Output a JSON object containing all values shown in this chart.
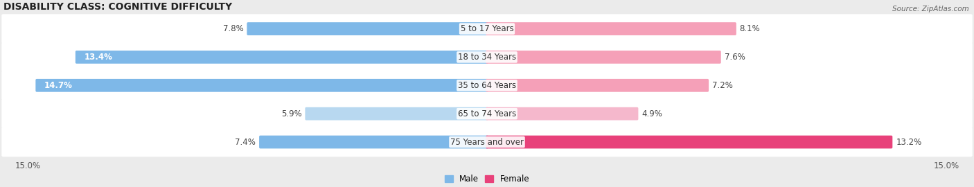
{
  "title": "DISABILITY CLASS: COGNITIVE DIFFICULTY",
  "source": "Source: ZipAtlas.com",
  "categories": [
    "5 to 17 Years",
    "18 to 34 Years",
    "35 to 64 Years",
    "65 to 74 Years",
    "75 Years and over"
  ],
  "male_values": [
    7.8,
    13.4,
    14.7,
    5.9,
    7.4
  ],
  "female_values": [
    8.1,
    7.6,
    7.2,
    4.9,
    13.2
  ],
  "x_max": 15.0,
  "male_bar_colors": [
    "#7eb8e8",
    "#7eb8e8",
    "#7eb8e8",
    "#b8d8f0",
    "#7eb8e8"
  ],
  "female_bar_colors": [
    "#f5a0b8",
    "#f5a0b8",
    "#f5a0b8",
    "#f5b8cc",
    "#e8417a"
  ],
  "background_color": "#ebebeb",
  "title_fontsize": 10,
  "label_fontsize": 8.5,
  "legend_male_color": "#7eb8e8",
  "legend_female_color": "#e8417a"
}
